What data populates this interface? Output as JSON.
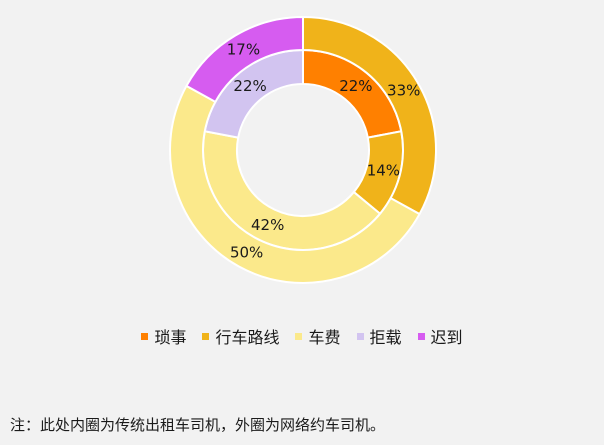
{
  "chart_data": {
    "type": "pie",
    "subtype": "double-donut",
    "categories": [
      "琐事",
      "行车路线",
      "车费",
      "拒载",
      "迟到"
    ],
    "colors": [
      "#ff8000",
      "#f0b31a",
      "#fbe98b",
      "#d2c4f0",
      "#d65cf0"
    ],
    "series": [
      {
        "ring": "inner",
        "values": [
          22,
          14,
          42,
          22,
          0
        ],
        "labels": [
          "22%",
          "14%",
          "42%",
          "22%",
          ""
        ]
      },
      {
        "ring": "outer",
        "values": [
          0,
          33,
          50,
          0,
          17
        ],
        "labels": [
          "",
          "33%",
          "50%",
          "",
          "17%"
        ]
      }
    ],
    "legend_position": "bottom"
  },
  "footnote": "注：此处内圈为传统出租车司机，外圈为网络约车司机。"
}
